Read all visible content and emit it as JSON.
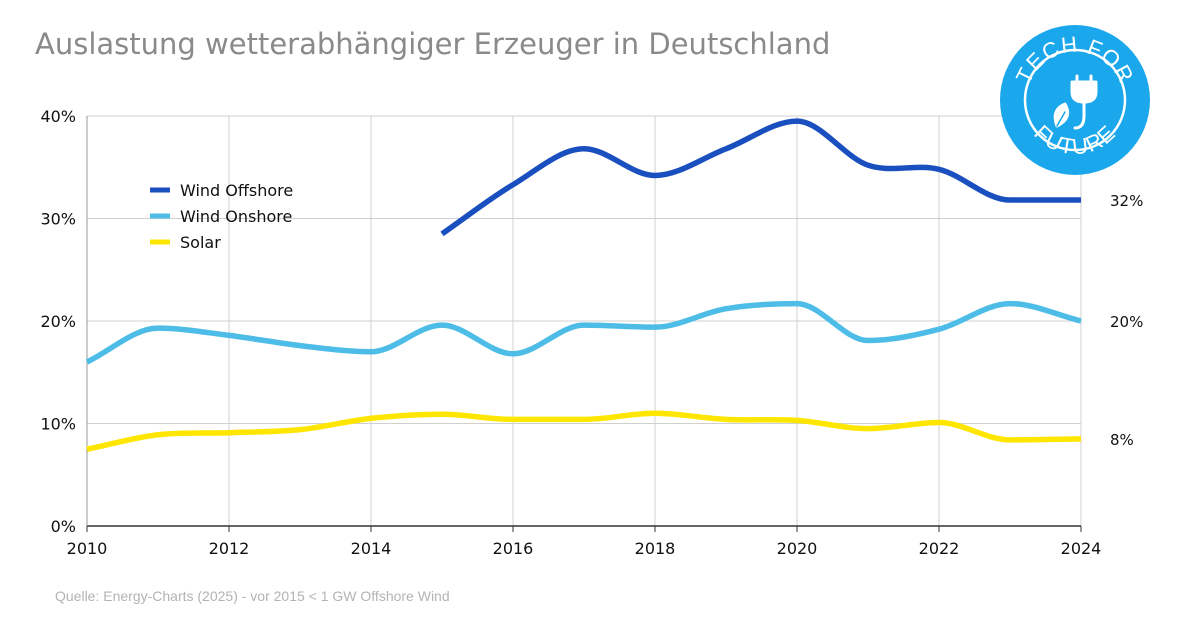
{
  "chart_data": {
    "type": "line",
    "title": "Auslastung wetterabhängiger Erzeuger in Deutschland",
    "source": "Quelle: Energy-Charts (2025) - vor 2015 < 1 GW Offshore Wind",
    "x": [
      2010,
      2011,
      2012,
      2013,
      2014,
      2015,
      2016,
      2017,
      2018,
      2019,
      2020,
      2021,
      2022,
      2023,
      2024
    ],
    "x_ticks": [
      "2010",
      "2012",
      "2014",
      "2016",
      "2018",
      "2020",
      "2022",
      "2024"
    ],
    "y_ticks": [
      "0%",
      "10%",
      "20%",
      "30%",
      "40%"
    ],
    "xlim": [
      2010,
      2024
    ],
    "ylim": [
      0,
      40
    ],
    "y_unit": "%",
    "grid": true,
    "legend_position": "top-left",
    "series": [
      {
        "name": "Wind Offshore",
        "color": "#1a4fc0",
        "x": [
          2015,
          2016,
          2017,
          2018,
          2019,
          2020,
          2021,
          2022,
          2023,
          2024
        ],
        "values": [
          28.5,
          33.3,
          36.8,
          34.2,
          36.8,
          39.5,
          35.2,
          34.8,
          31.8,
          31.8
        ],
        "end_label": "32%"
      },
      {
        "name": "Wind Onshore",
        "color": "#4dbde8",
        "x": [
          2010,
          2011,
          2012,
          2013,
          2014,
          2015,
          2016,
          2017,
          2018,
          2019,
          2020,
          2021,
          2022,
          2023,
          2024
        ],
        "values": [
          16.0,
          19.3,
          18.6,
          17.6,
          17.0,
          19.6,
          16.8,
          19.6,
          19.4,
          21.2,
          21.7,
          18.1,
          19.2,
          21.7,
          20.0
        ],
        "end_label": "20%"
      },
      {
        "name": "Solar",
        "color": "#ffe600",
        "x": [
          2010,
          2011,
          2012,
          2013,
          2014,
          2015,
          2016,
          2017,
          2018,
          2019,
          2020,
          2021,
          2022,
          2023,
          2024
        ],
        "values": [
          7.5,
          8.9,
          9.1,
          9.4,
          10.5,
          10.9,
          10.4,
          10.4,
          11.0,
          10.4,
          10.3,
          9.5,
          10.1,
          8.4,
          8.5
        ],
        "end_label": "8%"
      }
    ]
  },
  "logo": {
    "text_top": "TECH FOR",
    "text_bottom": "FUTURE",
    "color": "#1aa7ec",
    "icon": "plug-leaf-icon"
  }
}
